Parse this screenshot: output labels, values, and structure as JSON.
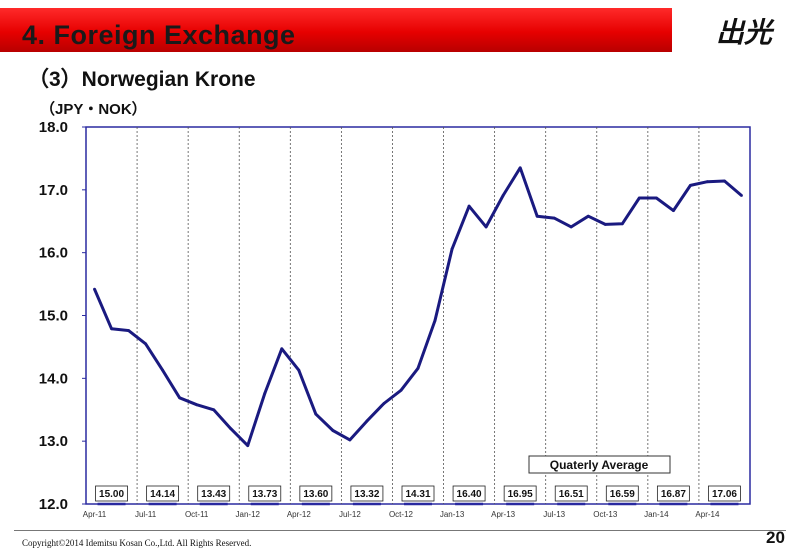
{
  "header": {
    "title": "4. Foreign Exchange",
    "logo_text": "出光"
  },
  "subtitle": "（3）Norwegian Krone",
  "unit": "（JPY・NOK）",
  "chart_data": {
    "type": "line",
    "title": "",
    "xlabel": "",
    "ylabel": "（JPY・NOK）",
    "ylim": [
      12.0,
      18.0
    ],
    "yticks": [
      "18.0",
      "17.0",
      "16.0",
      "15.0",
      "14.0",
      "13.0",
      "12.0"
    ],
    "grid": "vertical dashed",
    "line_color": "#1a1a80",
    "x": [
      "Apr-11",
      "May-11",
      "Jun-11",
      "Jul-11",
      "Aug-11",
      "Sep-11",
      "Oct-11",
      "Nov-11",
      "Dec-11",
      "Jan-12",
      "Feb-12",
      "Mar-12",
      "Apr-12",
      "May-12",
      "Jun-12",
      "Jul-12",
      "Aug-12",
      "Sep-12",
      "Oct-12",
      "Nov-12",
      "Dec-12",
      "Jan-13",
      "Feb-13",
      "Mar-13",
      "Apr-13",
      "May-13",
      "Jun-13",
      "Jul-13",
      "Aug-13",
      "Sep-13",
      "Oct-13",
      "Nov-13",
      "Dec-13",
      "Jan-14",
      "Feb-14",
      "Mar-14",
      "Apr-14",
      "May-14",
      "Jun-14"
    ],
    "xticks": [
      "Apr-11",
      "Jul-11",
      "Oct-11",
      "Jan-12",
      "Apr-12",
      "Jul-12",
      "Oct-12",
      "Jan-13",
      "Apr-13",
      "Jul-13",
      "Oct-13",
      "Jan-14",
      "Apr-14"
    ],
    "series": [
      {
        "values": [
          15.42,
          14.79,
          14.76,
          14.55,
          14.13,
          13.69,
          13.58,
          13.5,
          13.2,
          12.93,
          13.76,
          14.47,
          14.13,
          13.43,
          13.17,
          13.02,
          13.32,
          13.6,
          13.81,
          14.16,
          14.92,
          16.06,
          16.74,
          16.41,
          16.91,
          17.35,
          16.58,
          16.55,
          16.41,
          16.58,
          16.45,
          16.46,
          16.87,
          16.87,
          16.67,
          17.07,
          17.13,
          17.14,
          16.91
        ]
      }
    ],
    "quarterly_average_label": "Quaterly Average",
    "quarterly_averages": [
      "15.00",
      "14.14",
      "13.43",
      "13.73",
      "13.60",
      "13.32",
      "14.31",
      "16.40",
      "16.95",
      "16.51",
      "16.59",
      "16.87",
      "17.06"
    ]
  },
  "footer": "Copyright©2014 Idemitsu Kosan Co.,Ltd. All Rights Reserved.",
  "page_number": "20"
}
